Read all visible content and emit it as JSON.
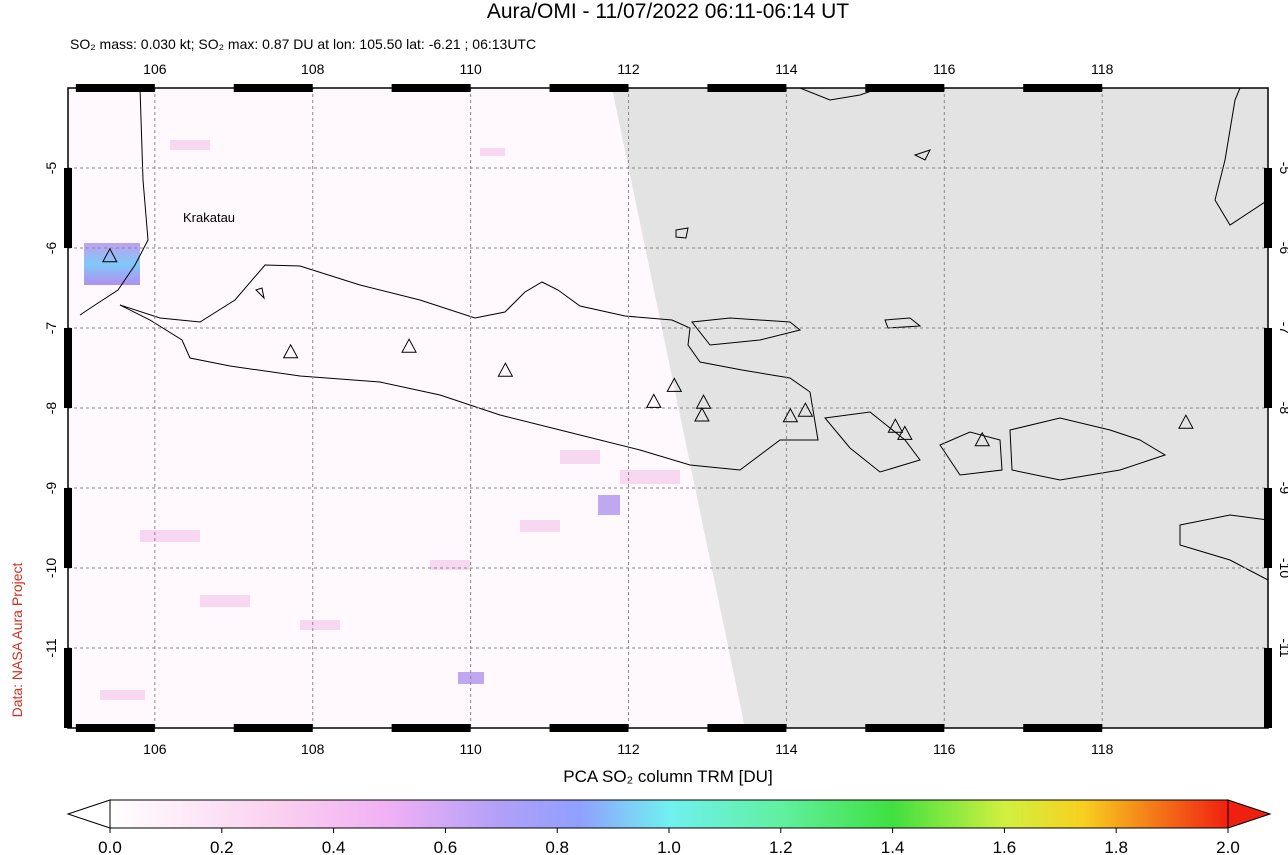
{
  "header": {
    "title": "Aura/OMI - 11/07/2022 06:11-06:14 UT",
    "subtitle": "SO₂ mass: 0.030 kt; SO₂ max: 0.87 DU at lon: 105.50 lat: -6.21 ; 06:13UTC"
  },
  "map": {
    "xlim": [
      104.9,
      120.1
    ],
    "ylim": [
      -12,
      -4
    ],
    "xticks": [
      106,
      108,
      110,
      112,
      114,
      116,
      118
    ],
    "yticks": [
      -5,
      -6,
      -7,
      -8,
      -9,
      -10,
      -11
    ],
    "grid": true,
    "place_label": "Krakatau",
    "volcanoes": {
      "lon": [
        105.43,
        107.72,
        109.22,
        110.44,
        112.32,
        112.58,
        112.95,
        112.93,
        114.05,
        114.24,
        115.38,
        115.5,
        116.48,
        119.06
      ],
      "lat": [
        -6.11,
        -7.31,
        -7.24,
        -7.54,
        -7.93,
        -7.73,
        -7.94,
        -8.1,
        -8.11,
        -8.04,
        -8.24,
        -8.33,
        -8.41,
        -8.19
      ]
    }
  },
  "colorbar": {
    "label": "PCA SO₂ column TRM [DU]",
    "lim": [
      0,
      2
    ],
    "ticks": [
      {
        "value": 0,
        "label": "0.0"
      },
      0.2,
      0.4,
      0.6,
      0.8,
      {
        "value": 1,
        "label": "1.0"
      },
      1.2,
      1.4,
      1.6,
      1.8,
      {
        "value": 2,
        "label": "2.0"
      }
    ]
  },
  "credit": "Data: NASA Aura Project"
}
